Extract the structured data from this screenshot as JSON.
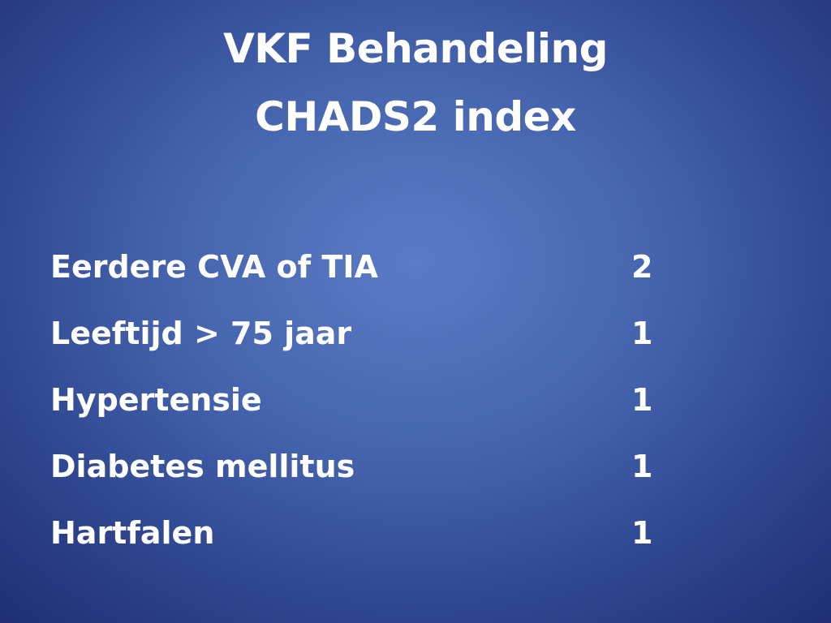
{
  "slide": {
    "title_line1": "VKF Behandeling",
    "title_line2": "CHADS2 index",
    "rows": [
      {
        "label": "Eerdere CVA of TIA",
        "score": "2"
      },
      {
        "label": "Leeftijd > 75 jaar",
        "score": "1"
      },
      {
        "label": "Hypertensie",
        "score": "1"
      },
      {
        "label": "Diabetes mellitus",
        "score": "1"
      },
      {
        "label": "Hartfalen",
        "score": "1"
      }
    ]
  }
}
